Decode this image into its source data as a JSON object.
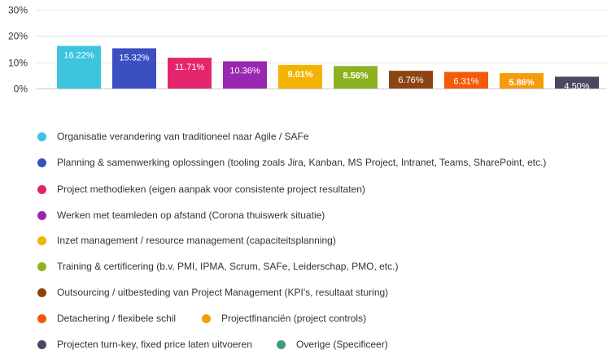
{
  "chart_data": {
    "type": "bar",
    "ylim": [
      0,
      30
    ],
    "y_ticks": [
      "0%",
      "10%",
      "20%",
      "30%"
    ],
    "grid": true,
    "legend_position": "bottom",
    "series": [
      {
        "name": "Organisatie verandering van traditioneel naar Agile / SAFe",
        "value": 16.22,
        "label": "16.22%",
        "color": "#3ec4de"
      },
      {
        "name": "Planning & samenwerking oplossingen (tooling zoals Jira, Kanban, MS Project, Intranet, Teams, SharePoint, etc.)",
        "value": 15.32,
        "label": "15.32%",
        "color": "#3b4fc1"
      },
      {
        "name": "Project methodieken (eigen aanpak voor consistente project resultaten)",
        "value": 11.71,
        "label": "11.71%",
        "color": "#e5256b"
      },
      {
        "name": "Werken met teamleden op afstand (Corona thuiswerk situatie)",
        "value": 10.36,
        "label": "10.36%",
        "color": "#9a27b1"
      },
      {
        "name": "Inzet management / resource management (capaciteitsplanning)",
        "value": 9.01,
        "label": "9.01%",
        "color": "#f2b400"
      },
      {
        "name": "Training & certificering (b.v. PMI, IPMA, Scrum, SAFe, Leiderschap, PMO, etc.)",
        "value": 8.56,
        "label": "8.56%",
        "color": "#8cb221"
      },
      {
        "name": "Outsourcing / uitbesteding van Project Management (KPI's, resultaat sturing)",
        "value": 6.76,
        "label": "6.76%",
        "color": "#8b4513"
      },
      {
        "name": "Detachering / flexibele schil",
        "value": 6.31,
        "label": "6.31%",
        "color": "#f35a0a"
      },
      {
        "name": "Projectfinanciën (project controls)",
        "value": 5.86,
        "label": "5.86%",
        "color": "#f49c0b"
      },
      {
        "name": "Projecten turn-key, fixed price laten uitvoeren",
        "value": 4.5,
        "label": "4.50%",
        "color": "#484860"
      },
      {
        "name": "Overige (Specificeer)",
        "value": null,
        "label": "",
        "color": "#3f9b86"
      }
    ]
  }
}
